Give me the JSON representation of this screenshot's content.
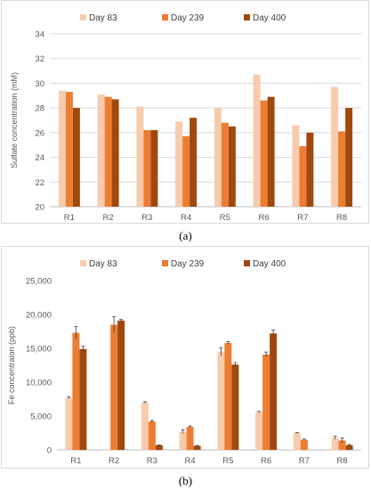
{
  "colors": {
    "day83": "#F8CBAD",
    "day239": "#ED7D31",
    "day400": "#A0490F",
    "grid": "#d9d9d9",
    "axis": "#bfbfbf"
  },
  "chart_data": [
    {
      "type": "bar",
      "panel_label": "(a)",
      "ylabel": "Sulfate concentration (mM)",
      "ylim": [
        20,
        34
      ],
      "yticks": [
        20,
        22,
        24,
        26,
        28,
        30,
        32,
        34
      ],
      "grid": true,
      "legend": "top",
      "categories": [
        "R1",
        "R2",
        "R3",
        "R4",
        "R5",
        "R6",
        "R7",
        "R8"
      ],
      "series": [
        {
          "name": "Day 83",
          "values": [
            29.4,
            29.1,
            28.1,
            26.9,
            28.0,
            30.7,
            26.6,
            29.7
          ]
        },
        {
          "name": "Day 239",
          "values": [
            29.3,
            28.9,
            26.2,
            25.7,
            26.8,
            28.6,
            24.9,
            26.1
          ]
        },
        {
          "name": "Day 400",
          "values": [
            28.0,
            28.7,
            26.2,
            27.2,
            26.5,
            28.9,
            26.0,
            28.0
          ]
        }
      ]
    },
    {
      "type": "bar",
      "panel_label": "(b)",
      "ylabel": "Fe concentraion (ppb)",
      "ylim": [
        0,
        25000
      ],
      "yticks": [
        0,
        5000,
        10000,
        15000,
        20000,
        25000
      ],
      "ytick_labels": [
        "0",
        "5,000",
        "10,000",
        "15,000",
        "20,000",
        "25,000"
      ],
      "grid": false,
      "legend": "top",
      "categories": [
        "R1",
        "R2",
        "R3",
        "R4",
        "R5",
        "R6",
        "R7",
        "R8"
      ],
      "series": [
        {
          "name": "Day 83",
          "values": [
            7700,
            0,
            7000,
            2700,
            14500,
            5600,
            2500,
            1800
          ],
          "errors": [
            150,
            0,
            120,
            250,
            600,
            100,
            60,
            220
          ]
        },
        {
          "name": "Day 239",
          "values": [
            17300,
            18500,
            4200,
            3400,
            15800,
            14100,
            1500,
            1400
          ],
          "errors": [
            900,
            1200,
            150,
            150,
            200,
            350,
            100,
            350
          ]
        },
        {
          "name": "Day 400",
          "values": [
            14900,
            19100,
            700,
            600,
            12600,
            17200,
            0,
            700
          ],
          "errors": [
            400,
            150,
            50,
            50,
            300,
            500,
            0,
            100
          ]
        }
      ]
    }
  ]
}
